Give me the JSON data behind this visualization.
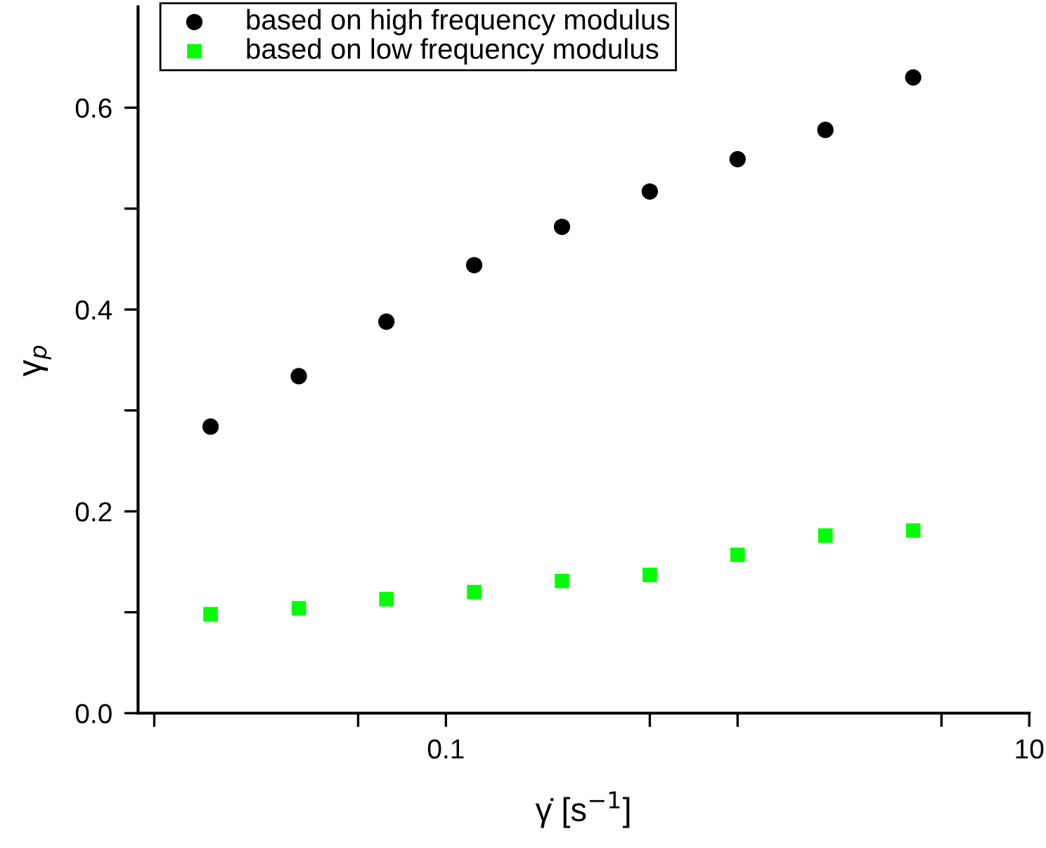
{
  "chart_data": {
    "type": "scatter",
    "xlabel": "γ̇ [s$^{−1}$]",
    "ylabel": "γ$_{p}$",
    "log": "x",
    "x": [
      0.0156,
      0.0313,
      0.0625,
      0.125,
      0.25,
      0.5,
      1,
      2,
      4
    ],
    "xlim": [
      0.0088,
      10
    ],
    "xticks": [
      {
        "value": 0.01,
        "label": null
      },
      {
        "value": 0.05,
        "label": null
      },
      0.1,
      {
        "value": 0.5,
        "label": null
      },
      {
        "value": 1,
        "label": null
      },
      {
        "value": 5,
        "label": null
      },
      10
    ],
    "ylim": [
      0,
      0.7
    ],
    "yticks": [
      {
        "value": 0,
        "label": "0.0"
      },
      {
        "value": 0.1,
        "label": null
      },
      0.2,
      {
        "value": 0.3,
        "label": null
      },
      0.4,
      {
        "value": 0.5,
        "label": null
      },
      0.6
    ],
    "series": [
      {
        "name": "based on high frequency modulus",
        "color": "#000000",
        "marker": "circle",
        "values": [
          0.284,
          0.334,
          0.388,
          0.444,
          0.482,
          0.517,
          0.549,
          0.578,
          0.63
        ]
      },
      {
        "name": "based on low frequency modulus",
        "color": "#00ff00",
        "marker": "square",
        "values": [
          0.098,
          0.104,
          0.113,
          0.12,
          0.131,
          0.137,
          0.157,
          0.176,
          0.181
        ]
      }
    ],
    "legend": "top left",
    "grid": false
  }
}
